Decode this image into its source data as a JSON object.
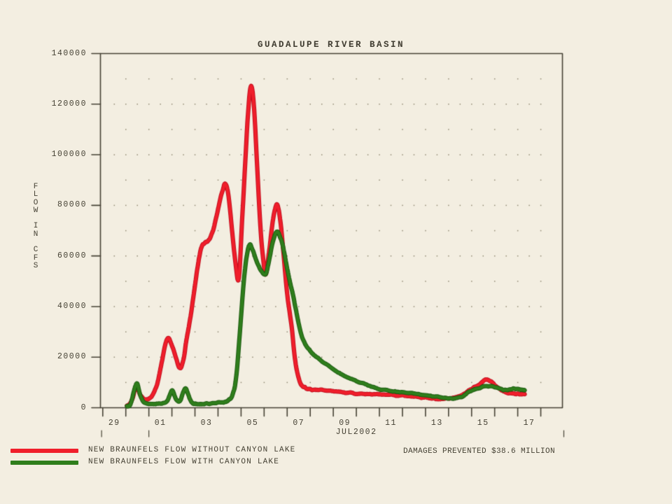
{
  "page": {
    "background_color": "#f3eee1",
    "ink_color": "#454134"
  },
  "chart_data": {
    "type": "line",
    "title": "GUADALUPE RIVER BASIN",
    "annotation": "DAMAGES PREVENTED $38.6 MILLION",
    "grid": {
      "style": "dotted",
      "dot_color": "rgba(120,112,88,0.8)"
    },
    "y_axis": {
      "title_vertical": "FLOW IN CFS",
      "range": [
        0,
        140000
      ],
      "ticks": [
        "140000",
        "120000",
        "100000",
        "80000",
        "60000",
        "40000",
        "20000",
        "0"
      ],
      "tick_values": [
        140000,
        120000,
        100000,
        80000,
        60000,
        40000,
        20000,
        0
      ]
    },
    "x_axis": {
      "period_label": "JUL2002",
      "note": "day 1 = 01JUL2002, day -1 = 29JUN2002",
      "domain_days": [
        -1.6,
        18.44
      ],
      "tick_labels": [
        "29",
        "01",
        "03",
        "05",
        "07",
        "09",
        "11",
        "13",
        "15",
        "17"
      ],
      "tick_label_days": [
        -1,
        1,
        3,
        5,
        7,
        9,
        11,
        13,
        15,
        17
      ],
      "day_boundary_first": -1.5,
      "day_boundary_last": 17.5,
      "period_mark_days": [
        -1.55,
        0.5,
        18.5
      ]
    },
    "series": [
      {
        "name": "NEW BRAUNFELS FLOW WITHOUT CANYON LAKE",
        "color": "#f01e2b",
        "edge_color": "#c00e1e",
        "points": [
          [
            -0.45,
            800
          ],
          [
            -0.25,
            2600
          ],
          [
            -0.05,
            8300
          ],
          [
            0.12,
            5200
          ],
          [
            0.35,
            3200
          ],
          [
            0.6,
            4300
          ],
          [
            0.85,
            9000
          ],
          [
            1.05,
            17500
          ],
          [
            1.3,
            27400
          ],
          [
            1.55,
            23500
          ],
          [
            1.82,
            15800
          ],
          [
            2.0,
            19000
          ],
          [
            2.12,
            26300
          ],
          [
            2.3,
            35500
          ],
          [
            2.45,
            45000
          ],
          [
            2.6,
            54500
          ],
          [
            2.75,
            62500
          ],
          [
            2.9,
            65000
          ],
          [
            3.1,
            66500
          ],
          [
            3.3,
            70500
          ],
          [
            3.5,
            78500
          ],
          [
            3.7,
            86000
          ],
          [
            3.82,
            88500
          ],
          [
            3.95,
            84000
          ],
          [
            4.1,
            71000
          ],
          [
            4.25,
            58000
          ],
          [
            4.4,
            51000
          ],
          [
            4.55,
            75000
          ],
          [
            4.67,
            95000
          ],
          [
            4.8,
            116000
          ],
          [
            4.93,
            127000
          ],
          [
            5.06,
            119000
          ],
          [
            5.2,
            95000
          ],
          [
            5.35,
            70000
          ],
          [
            5.5,
            55500
          ],
          [
            5.58,
            53000
          ],
          [
            5.72,
            62000
          ],
          [
            5.88,
            74000
          ],
          [
            6.05,
            80300
          ],
          [
            6.2,
            74000
          ],
          [
            6.35,
            60000
          ],
          [
            6.5,
            45000
          ],
          [
            6.68,
            33000
          ],
          [
            6.85,
            18500
          ],
          [
            7.0,
            11500
          ],
          [
            7.15,
            8700
          ],
          [
            7.4,
            7400
          ],
          [
            7.7,
            7000
          ],
          [
            8.1,
            6900
          ],
          [
            8.6,
            6500
          ],
          [
            9.2,
            5900
          ],
          [
            9.8,
            5600
          ],
          [
            10.4,
            5300
          ],
          [
            11.0,
            5000
          ],
          [
            11.6,
            4700
          ],
          [
            12.2,
            4300
          ],
          [
            12.7,
            3900
          ],
          [
            13.05,
            3400
          ],
          [
            13.4,
            3500
          ],
          [
            13.8,
            4200
          ],
          [
            14.2,
            5600
          ],
          [
            14.5,
            7600
          ],
          [
            14.8,
            9000
          ],
          [
            15.1,
            11100
          ],
          [
            15.35,
            10300
          ],
          [
            15.6,
            8200
          ],
          [
            15.95,
            6200
          ],
          [
            16.3,
            5400
          ],
          [
            16.6,
            5400
          ],
          [
            16.8,
            5600
          ]
        ]
      },
      {
        "name": "NEW BRAUNFELS FLOW WITH CANYON LAKE",
        "color": "#2f7e1c",
        "edge_color": "#1a5a0f",
        "points": [
          [
            -0.45,
            700
          ],
          [
            -0.3,
            1300
          ],
          [
            -0.12,
            7400
          ],
          [
            0.0,
            9400
          ],
          [
            0.15,
            4200
          ],
          [
            0.35,
            1900
          ],
          [
            0.7,
            1500
          ],
          [
            1.05,
            1700
          ],
          [
            1.3,
            2600
          ],
          [
            1.5,
            6700
          ],
          [
            1.68,
            3400
          ],
          [
            1.85,
            2700
          ],
          [
            2.0,
            6400
          ],
          [
            2.12,
            7400
          ],
          [
            2.3,
            3000
          ],
          [
            2.5,
            1500
          ],
          [
            2.9,
            1600
          ],
          [
            3.3,
            1800
          ],
          [
            3.7,
            2200
          ],
          [
            3.95,
            2800
          ],
          [
            4.15,
            5500
          ],
          [
            4.3,
            13000
          ],
          [
            4.45,
            30000
          ],
          [
            4.6,
            48000
          ],
          [
            4.73,
            59000
          ],
          [
            4.87,
            64500
          ],
          [
            5.0,
            62500
          ],
          [
            5.15,
            58500
          ],
          [
            5.35,
            54500
          ],
          [
            5.55,
            52500
          ],
          [
            5.7,
            57500
          ],
          [
            5.85,
            64500
          ],
          [
            6.02,
            69300
          ],
          [
            6.15,
            68500
          ],
          [
            6.3,
            64500
          ],
          [
            6.45,
            57500
          ],
          [
            6.6,
            50500
          ],
          [
            6.75,
            44500
          ],
          [
            6.95,
            35500
          ],
          [
            7.15,
            28000
          ],
          [
            7.4,
            23500
          ],
          [
            7.7,
            20500
          ],
          [
            8.0,
            18500
          ],
          [
            8.6,
            14500
          ],
          [
            9.2,
            11700
          ],
          [
            9.8,
            9500
          ],
          [
            10.4,
            7700
          ],
          [
            11.0,
            6600
          ],
          [
            11.6,
            6000
          ],
          [
            12.2,
            5300
          ],
          [
            12.8,
            4600
          ],
          [
            13.3,
            4000
          ],
          [
            13.7,
            3700
          ],
          [
            14.1,
            4500
          ],
          [
            14.5,
            6900
          ],
          [
            15.0,
            8300
          ],
          [
            15.35,
            8700
          ],
          [
            15.7,
            7600
          ],
          [
            16.0,
            7000
          ],
          [
            16.3,
            7500
          ],
          [
            16.6,
            7200
          ],
          [
            16.8,
            6800
          ]
        ]
      }
    ]
  }
}
